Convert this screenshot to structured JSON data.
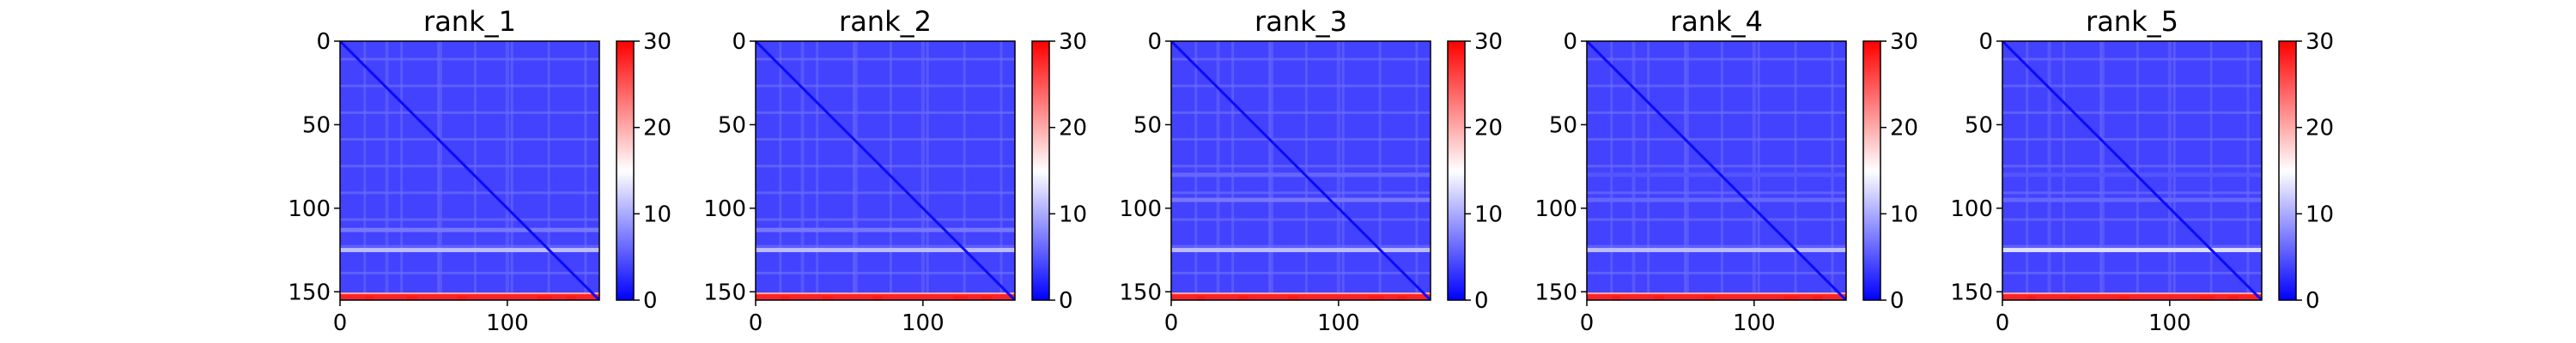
{
  "chart_data": [
    {
      "type": "heatmap",
      "title": "rank_1",
      "x_ticks": [
        0,
        100
      ],
      "y_ticks": [
        0,
        50,
        100,
        150
      ],
      "xlim": [
        0,
        155
      ],
      "ylim": [
        155,
        0
      ],
      "colorbar": {
        "ticks": [
          0,
          10,
          20,
          30
        ],
        "range": [
          0,
          30
        ],
        "colormap": "bwr",
        "colors": [
          "#0000ff",
          "#ffffff",
          "#ff0000"
        ]
      },
      "bands": {
        "rows": [
          [
            113,
            7
          ],
          [
            125,
            11
          ],
          [
            152,
            20
          ],
          [
            153,
            28
          ]
        ],
        "cols": [
          [
            28,
            2
          ],
          [
            60,
            2
          ],
          [
            100,
            2
          ]
        ]
      }
    },
    {
      "type": "heatmap",
      "title": "rank_2",
      "x_ticks": [
        0,
        100
      ],
      "y_ticks": [
        0,
        50,
        100,
        150
      ],
      "xlim": [
        0,
        155
      ],
      "ylim": [
        155,
        0
      ],
      "colorbar": {
        "ticks": [
          0,
          10,
          20,
          30
        ],
        "range": [
          0,
          30
        ],
        "colormap": "bwr",
        "colors": [
          "#0000ff",
          "#ffffff",
          "#ff0000"
        ]
      },
      "bands": {
        "rows": [
          [
            113,
            7
          ],
          [
            125,
            11
          ],
          [
            152,
            20
          ],
          [
            153,
            28
          ]
        ],
        "cols": [
          [
            28,
            2
          ],
          [
            60,
            2
          ],
          [
            100,
            2
          ]
        ]
      }
    },
    {
      "type": "heatmap",
      "title": "rank_3",
      "x_ticks": [
        0,
        100
      ],
      "y_ticks": [
        0,
        50,
        100,
        150
      ],
      "xlim": [
        0,
        155
      ],
      "ylim": [
        155,
        0
      ],
      "colorbar": {
        "ticks": [
          0,
          10,
          20,
          30
        ],
        "range": [
          0,
          30
        ],
        "colormap": "bwr",
        "colors": [
          "#0000ff",
          "#ffffff",
          "#ff0000"
        ]
      },
      "bands": {
        "rows": [
          [
            80,
            6
          ],
          [
            95,
            7
          ],
          [
            125,
            11
          ],
          [
            152,
            20
          ],
          [
            153,
            28
          ]
        ],
        "cols": [
          [
            28,
            2
          ],
          [
            60,
            2
          ],
          [
            100,
            2
          ]
        ]
      }
    },
    {
      "type": "heatmap",
      "title": "rank_4",
      "x_ticks": [
        0,
        100
      ],
      "y_ticks": [
        0,
        50,
        100,
        150
      ],
      "xlim": [
        0,
        155
      ],
      "ylim": [
        155,
        0
      ],
      "colorbar": {
        "ticks": [
          0,
          10,
          20,
          30
        ],
        "range": [
          0,
          30
        ],
        "colormap": "bwr",
        "colors": [
          "#0000ff",
          "#ffffff",
          "#ff0000"
        ]
      },
      "bands": {
        "rows": [
          [
            80,
            5
          ],
          [
            95,
            6
          ],
          [
            125,
            11
          ],
          [
            152,
            20
          ],
          [
            153,
            28
          ]
        ],
        "cols": [
          [
            28,
            2
          ],
          [
            60,
            2
          ],
          [
            100,
            2
          ]
        ]
      }
    },
    {
      "type": "heatmap",
      "title": "rank_5",
      "x_ticks": [
        0,
        100
      ],
      "y_ticks": [
        0,
        50,
        100,
        150
      ],
      "xlim": [
        0,
        155
      ],
      "ylim": [
        155,
        0
      ],
      "colorbar": {
        "ticks": [
          0,
          10,
          20,
          30
        ],
        "range": [
          0,
          30
        ],
        "colormap": "bwr",
        "colors": [
          "#0000ff",
          "#ffffff",
          "#ff0000"
        ]
      },
      "bands": {
        "rows": [
          [
            80,
            5
          ],
          [
            95,
            6
          ],
          [
            125,
            13
          ],
          [
            152,
            20
          ],
          [
            153,
            28
          ]
        ],
        "cols": [
          [
            28,
            2
          ],
          [
            60,
            2
          ],
          [
            100,
            2
          ]
        ]
      }
    }
  ]
}
